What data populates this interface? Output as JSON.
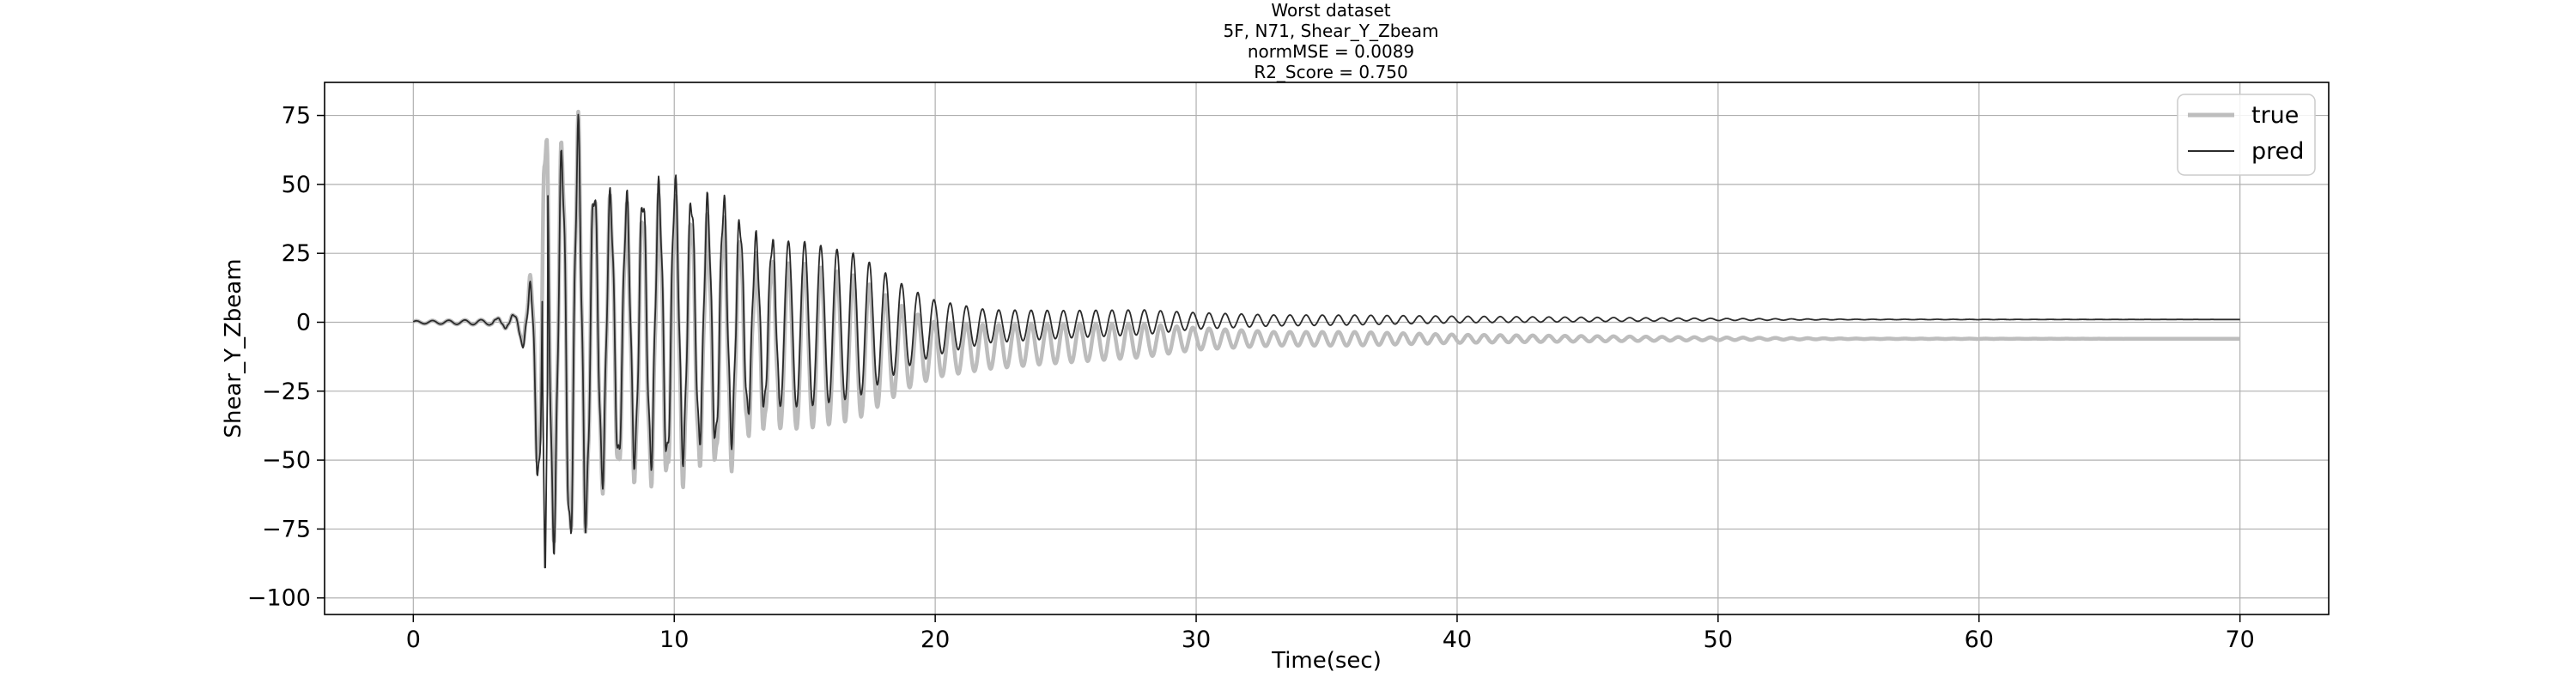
{
  "chart_data": {
    "type": "line",
    "title_lines": [
      "Worst dataset",
      "5F, N71, Shear_Y_Zbeam",
      "normMSE = 0.0089",
      "R2_Score = 0.750"
    ],
    "xlabel": "Time(sec)",
    "ylabel": "Shear_Y_Zbeam",
    "xlim": [
      -3.4,
      73.4
    ],
    "ylim": [
      -106,
      87
    ],
    "xticks": [
      0,
      10,
      20,
      30,
      40,
      50,
      60,
      70
    ],
    "yticks": [
      -100,
      -75,
      -50,
      -25,
      0,
      25,
      50,
      75
    ],
    "ytick_labels": [
      "−100",
      "−75",
      "−50",
      "−25",
      "0",
      "25",
      "50",
      "75"
    ],
    "grid": true,
    "legend_position": "top-right",
    "time_range": [
      0,
      70
    ],
    "series": [
      {
        "name": "true",
        "color": "#bdbdbd",
        "style": "thick light gray",
        "envelope": [
          [
            0.0,
            0.5
          ],
          [
            3.0,
            1
          ],
          [
            4.0,
            3
          ],
          [
            4.4,
            12
          ],
          [
            4.6,
            28
          ],
          [
            5.0,
            75
          ],
          [
            5.5,
            65
          ],
          [
            6.3,
            75
          ],
          [
            7.0,
            52
          ],
          [
            8.0,
            46
          ],
          [
            9.0,
            48
          ],
          [
            10.0,
            50
          ],
          [
            11.0,
            42
          ],
          [
            12.0,
            44
          ],
          [
            13.0,
            30
          ],
          [
            14.0,
            30
          ],
          [
            15.0,
            30
          ],
          [
            16.0,
            28
          ],
          [
            17.0,
            26
          ],
          [
            18.0,
            20
          ],
          [
            19.0,
            14
          ],
          [
            20.0,
            10
          ],
          [
            22.0,
            8
          ],
          [
            25.0,
            7
          ],
          [
            28.0,
            6
          ],
          [
            30.0,
            4
          ],
          [
            33.0,
            2.5
          ],
          [
            36.0,
            2.5
          ],
          [
            40.0,
            1.5
          ],
          [
            45.0,
            1
          ],
          [
            50.0,
            0.5
          ],
          [
            55.0,
            0.1
          ],
          [
            70.0,
            0.0
          ]
        ],
        "baseline": [
          [
            0.0,
            0.0
          ],
          [
            4.0,
            0.0
          ],
          [
            5.0,
            -5
          ],
          [
            8.0,
            -7
          ],
          [
            12.0,
            -8
          ],
          [
            16.0,
            -9
          ],
          [
            20.0,
            -10
          ],
          [
            24.0,
            -8
          ],
          [
            30.0,
            -6
          ],
          [
            40.0,
            -6
          ],
          [
            70.0,
            -6
          ]
        ],
        "period_sec": 0.62,
        "final_value": -6
      },
      {
        "name": "pred",
        "color": "#2b2b2b",
        "style": "thin dark",
        "envelope": [
          [
            0.0,
            0.5
          ],
          [
            3.0,
            1
          ],
          [
            4.0,
            3
          ],
          [
            4.4,
            12
          ],
          [
            4.6,
            28
          ],
          [
            5.0,
            78
          ],
          [
            5.5,
            65
          ],
          [
            6.3,
            75
          ],
          [
            7.0,
            52
          ],
          [
            8.0,
            46
          ],
          [
            9.0,
            48
          ],
          [
            10.0,
            50
          ],
          [
            11.0,
            42
          ],
          [
            12.0,
            44
          ],
          [
            13.0,
            30
          ],
          [
            14.0,
            30
          ],
          [
            15.0,
            30
          ],
          [
            16.0,
            28
          ],
          [
            17.0,
            26
          ],
          [
            18.0,
            20
          ],
          [
            19.0,
            14
          ],
          [
            20.0,
            10
          ],
          [
            22.0,
            6
          ],
          [
            25.0,
            5
          ],
          [
            28.0,
            4.5
          ],
          [
            30.0,
            3
          ],
          [
            33.0,
            2
          ],
          [
            36.0,
            1.8
          ],
          [
            40.0,
            1.2
          ],
          [
            45.0,
            0.8
          ],
          [
            50.0,
            0.4
          ],
          [
            55.0,
            0.1
          ],
          [
            70.0,
            0.0
          ]
        ],
        "baseline": [
          [
            0.0,
            0.0
          ],
          [
            4.0,
            0.0
          ],
          [
            5.0,
            -10
          ],
          [
            8.0,
            -3
          ],
          [
            10.0,
            0
          ],
          [
            12.0,
            0
          ],
          [
            16.0,
            -1
          ],
          [
            20.0,
            -2
          ],
          [
            24.0,
            -1
          ],
          [
            30.0,
            0.5
          ],
          [
            40.0,
            1
          ],
          [
            70.0,
            1
          ]
        ],
        "period_sec": 0.62,
        "final_value": 1,
        "min_value": -97
      }
    ]
  }
}
